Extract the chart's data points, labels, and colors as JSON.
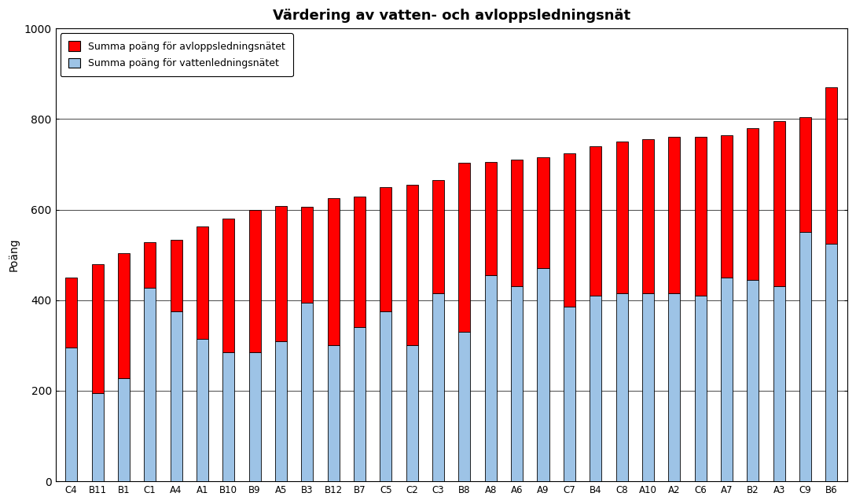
{
  "title": "Värdering av vatten- och avloppsledningsnät",
  "ylabel": "Poäng",
  "categories": [
    "C4",
    "B11",
    "B1",
    "C1",
    "A4",
    "A1",
    "B10",
    "B9",
    "A5",
    "B3",
    "B12",
    "B7",
    "C5",
    "C2",
    "C3",
    "B8",
    "A8",
    "A6",
    "A9",
    "C7",
    "B4",
    "C8",
    "A10",
    "A2",
    "C6",
    "A7",
    "B2",
    "A3",
    "C9",
    "B6"
  ],
  "vatten": [
    295,
    195,
    228,
    428,
    375,
    315,
    285,
    285,
    310,
    395,
    300,
    340,
    375,
    300,
    415,
    330,
    455,
    430,
    470,
    385,
    410,
    415,
    415,
    415,
    410,
    450,
    445,
    430,
    550,
    525
  ],
  "avlopp": [
    155,
    285,
    275,
    100,
    158,
    248,
    295,
    315,
    298,
    212,
    325,
    288,
    275,
    355,
    250,
    373,
    250,
    280,
    245,
    340,
    330,
    335,
    340,
    345,
    350,
    315,
    335,
    365,
    255,
    345
  ],
  "vatten_color": "#9DC3E6",
  "avlopp_color": "#FF0000",
  "ylim": [
    0,
    1000
  ],
  "yticks": [
    0,
    200,
    400,
    600,
    800,
    1000
  ],
  "legend_avlopp": "Summa poäng för avloppsledningsnätet",
  "legend_vatten": "Summa poäng för vattenledningsnätet",
  "background_color": "#FFFFFF",
  "plot_bg_color": "#FFFFFF",
  "title_fontsize": 13,
  "axis_label_fontsize": 10,
  "tick_fontsize": 8.5
}
